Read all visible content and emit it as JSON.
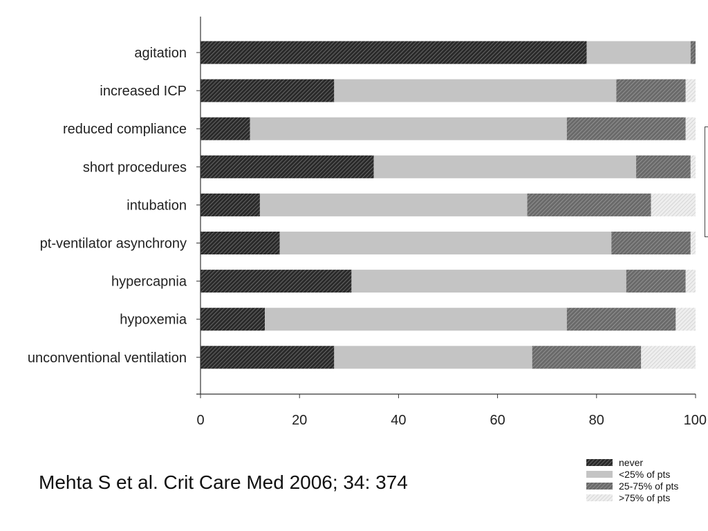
{
  "chart_data": {
    "type": "bar",
    "stacked": true,
    "orientation": "horizontal",
    "title": "",
    "xlabel": "",
    "ylabel": "",
    "xlim": [
      0,
      100
    ],
    "x_ticks": [
      "0",
      "20",
      "40",
      "60",
      "80",
      "100"
    ],
    "legend_position": "bottom-right",
    "categories": [
      "agitation",
      "increased ICP",
      "reduced compliance",
      "short procedures",
      "intubation",
      "pt-ventilator asynchrony",
      "hypercapnia",
      "hypoxemia",
      "unconventional ventilation"
    ],
    "series": [
      {
        "name": "never",
        "values": [
          78,
          27,
          10,
          35,
          12,
          16,
          30.5,
          13,
          27
        ]
      },
      {
        "name": "<25% of pts",
        "values": [
          21,
          57,
          64,
          53,
          54,
          67,
          55.5,
          61,
          40
        ]
      },
      {
        "name": "25-75% of pts",
        "values": [
          1,
          14,
          24,
          11,
          25,
          16,
          12,
          22,
          22
        ]
      },
      {
        "name": ">75% of pts",
        "values": [
          0,
          2,
          2,
          1,
          9,
          1,
          2,
          4,
          11
        ]
      }
    ],
    "series_fills": [
      "dense-hatch-dark",
      "solid-light-gray",
      "hatch-medium",
      "hatch-light"
    ]
  },
  "citation": "Mehta S et al. Crit Care Med 2006; 34: 374"
}
